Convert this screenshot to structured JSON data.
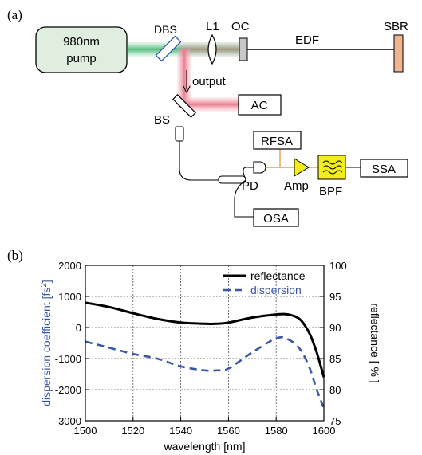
{
  "panel_a": {
    "label": "(a)",
    "pump_line1": "980nm",
    "pump_line2": "pump",
    "dbs": "DBS",
    "l1": "L1",
    "oc": "OC",
    "edf": "EDF",
    "sbr": "SBR",
    "output": "output",
    "bs": "BS",
    "ac": "AC",
    "rfsa": "RFSA",
    "pd": "PD",
    "amp": "Amp",
    "bpf": "BPF",
    "ssa": "SSA",
    "osa": "OSA"
  },
  "panel_b": {
    "label": "(b)"
  },
  "chart_data": {
    "type": "line",
    "xlabel": "wavelength [nm]",
    "ylabel_left": "dispersion coefficient [fs²]",
    "ylabel_right": "reflectance [ % ]",
    "xlim": [
      1500,
      1600
    ],
    "ylim_left": [
      -3000,
      2000
    ],
    "ylim_right": [
      75,
      100
    ],
    "x_ticks": [
      "1500",
      "1520",
      "1540",
      "1560",
      "1580",
      "1600"
    ],
    "y_left_ticks": [
      "2000",
      "1000",
      "0",
      "-1000",
      "-2000",
      "-3000"
    ],
    "y_right_ticks": [
      "100",
      "95",
      "90",
      "85",
      "80",
      "75"
    ],
    "grid": true,
    "legend_position": "top-right",
    "series": [
      {
        "name": "reflectance",
        "axis": "right",
        "color": "#000000",
        "style": "solid",
        "x": [
          1500,
          1510,
          1520,
          1530,
          1540,
          1550,
          1555,
          1560,
          1570,
          1580,
          1585,
          1590,
          1594,
          1597,
          1600
        ],
        "y": [
          94,
          93.3,
          92.3,
          91.4,
          90.8,
          90.6,
          90.6,
          90.8,
          91.6,
          92.1,
          92.1,
          91.3,
          89,
          86,
          82
        ]
      },
      {
        "name": "dispersion",
        "axis": "left",
        "color": "#3a57a5",
        "style": "dashed",
        "x": [
          1500,
          1510,
          1520,
          1530,
          1540,
          1550,
          1555,
          1560,
          1570,
          1580,
          1585,
          1590,
          1594,
          1597,
          1600
        ],
        "y": [
          -450,
          -650,
          -850,
          -1000,
          -1250,
          -1380,
          -1380,
          -1320,
          -800,
          -350,
          -380,
          -700,
          -1300,
          -2000,
          -2600
        ]
      }
    ]
  }
}
